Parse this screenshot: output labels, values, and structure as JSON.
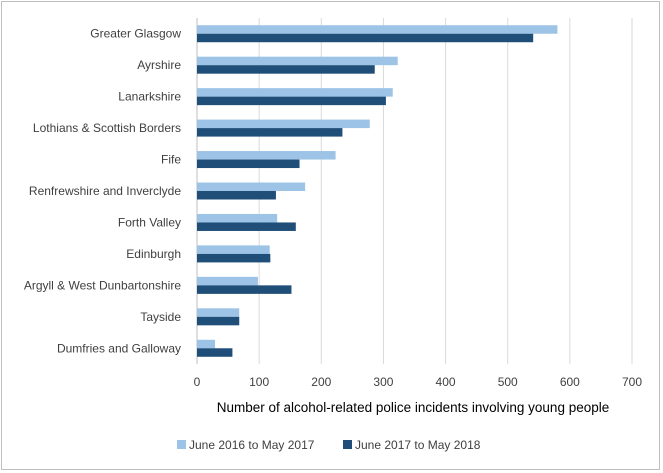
{
  "chart_data": {
    "type": "bar",
    "orientation": "horizontal",
    "title": "",
    "xlabel": "Number of alcohol-related police incidents involving young people",
    "ylabel": "",
    "xlim": [
      0,
      700
    ],
    "xticks": [
      0,
      100,
      200,
      300,
      400,
      500,
      600,
      700
    ],
    "grid": true,
    "legend_position": "bottom",
    "categories": [
      "Greater Glasgow",
      "Ayrshire",
      "Lanarkshire",
      "Lothians & Scottish Borders",
      "Fife",
      "Renfrewshire and Inverclyde",
      "Forth Valley",
      "Edinburgh",
      "Argyll & West Dunbartonshire",
      "Tayside",
      "Dumfries and Galloway"
    ],
    "series": [
      {
        "name": "June 2016 to May 2017",
        "color": "#9dc3e6",
        "values": [
          580,
          323,
          315,
          278,
          223,
          174,
          129,
          117,
          98,
          68,
          29
        ]
      },
      {
        "name": "June 2017 to May 2018",
        "color": "#1f4e79",
        "values": [
          541,
          286,
          304,
          234,
          165,
          127,
          159,
          118,
          152,
          68,
          57
        ]
      }
    ]
  }
}
